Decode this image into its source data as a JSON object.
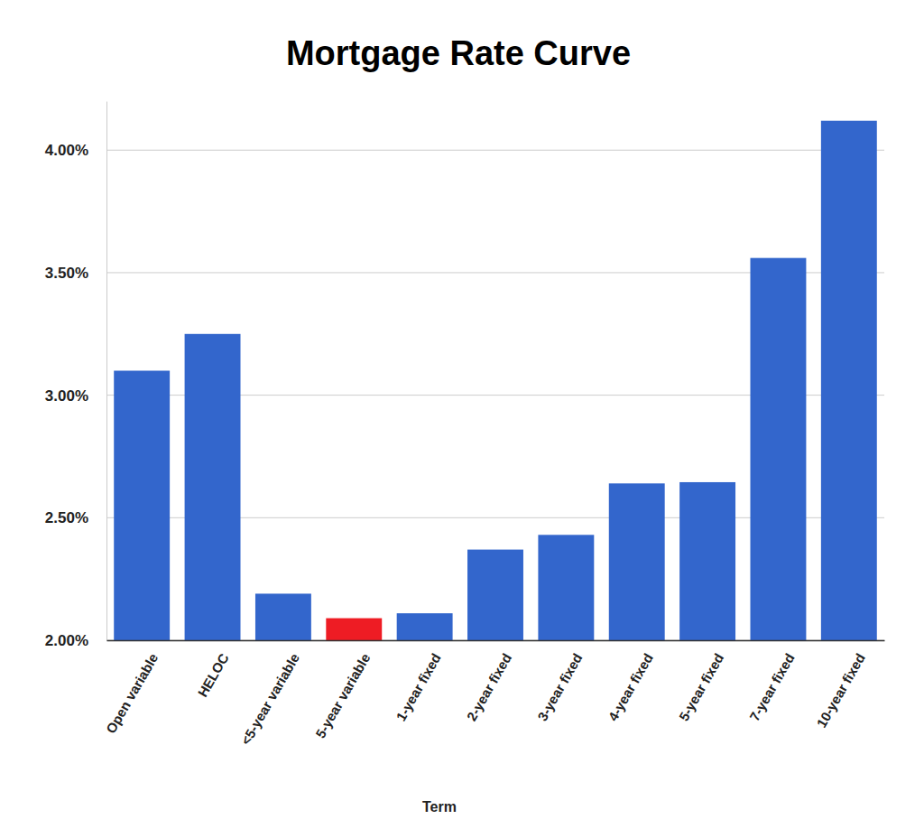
{
  "chart_data": {
    "type": "bar",
    "title": "Mortgage Rate Curve",
    "x_label": "Term",
    "categories": [
      "Open variable",
      "HELOC",
      "<5-year variable",
      "5-year variable",
      "1-year fixed",
      "2-year fixed",
      "3-year fixed",
      "4-year fixed",
      "5-year fixed",
      "7-year fixed",
      "10-year fixed"
    ],
    "values": [
      3.1,
      3.25,
      2.19,
      2.09,
      2.11,
      2.37,
      2.43,
      2.64,
      2.645,
      3.56,
      4.12
    ],
    "colors": [
      "#3366cc",
      "#3366cc",
      "#3366cc",
      "#ee1c24",
      "#3366cc",
      "#3366cc",
      "#3366cc",
      "#3366cc",
      "#3366cc",
      "#3366cc",
      "#3366cc"
    ],
    "ylim": [
      2,
      4.2
    ],
    "yticks": [
      {
        "value": 2,
        "label": "2.00%"
      },
      {
        "value": 2.5,
        "label": "2.50%"
      },
      {
        "value": 3,
        "label": "3.00%"
      },
      {
        "value": 3.5,
        "label": "3.50%"
      },
      {
        "value": 4,
        "label": "4.00%"
      }
    ],
    "grid": true
  }
}
